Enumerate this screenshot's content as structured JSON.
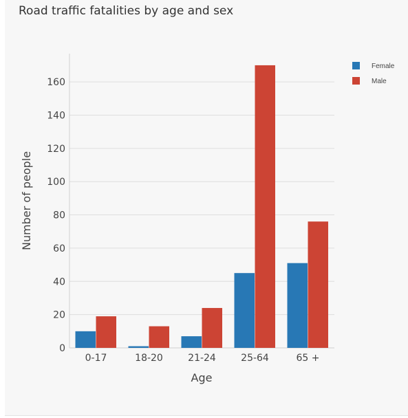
{
  "chart_data": {
    "type": "bar",
    "title": "Road traffic fatalities by age and sex",
    "xlabel": "Age",
    "ylabel": "Number of people",
    "categories": [
      "0-17",
      "18-20",
      "21-24",
      "25-64",
      "65 +"
    ],
    "series": [
      {
        "name": "Female",
        "color": "#2878b5",
        "values": [
          10,
          1,
          7,
          45,
          51
        ]
      },
      {
        "name": "Male",
        "color": "#cc4434",
        "values": [
          19,
          13,
          24,
          170,
          76
        ]
      }
    ],
    "yticks": [
      0,
      20,
      40,
      60,
      80,
      100,
      120,
      140,
      160
    ],
    "ylim": [
      0,
      177
    ],
    "grid": true,
    "legend_position": "top-right"
  }
}
